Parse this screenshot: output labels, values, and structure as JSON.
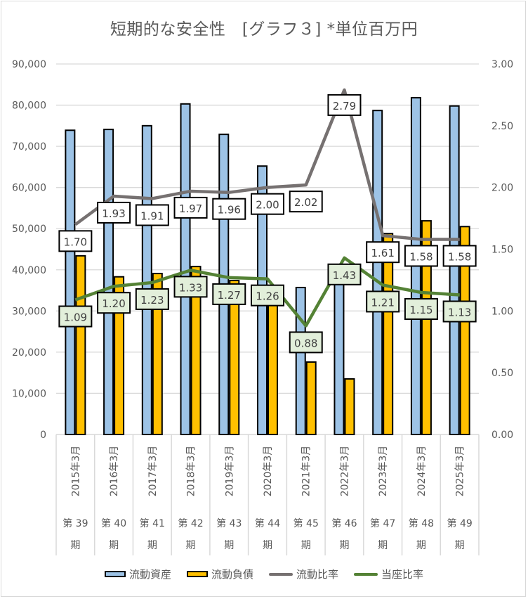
{
  "chart_data": {
    "type": "bar",
    "title": "短期的な安全性　[グラフ３] *単位百万円",
    "categories": [
      {
        "date": "2015年3月",
        "period": "第 39 期"
      },
      {
        "date": "2016年3月",
        "period": "第 40 期"
      },
      {
        "date": "2017年3月",
        "period": "第 41 期"
      },
      {
        "date": "2018年3月",
        "period": "第 42 期"
      },
      {
        "date": "2019年3月",
        "period": "第 43 期"
      },
      {
        "date": "2020年3月",
        "period": "第 44 期"
      },
      {
        "date": "2021年3月",
        "period": "第 45 期"
      },
      {
        "date": "2022年3月",
        "period": "第 46 期"
      },
      {
        "date": "2023年3月",
        "period": "第 47 期"
      },
      {
        "date": "2024年3月",
        "period": "第 48 期"
      },
      {
        "date": "2025年3月",
        "period": "第 49 期"
      }
    ],
    "series": [
      {
        "name": "流動資産",
        "type": "bar",
        "axis": "left",
        "color": "#9dc3e6",
        "values": [
          73900,
          74100,
          75000,
          80300,
          72900,
          65200,
          35700,
          37700,
          78700,
          81800,
          79800
        ]
      },
      {
        "name": "流動負債",
        "type": "bar",
        "axis": "left",
        "color": "#ffc000",
        "values": [
          43400,
          38300,
          39100,
          40800,
          37400,
          32600,
          17600,
          13500,
          48800,
          51900,
          50500
        ]
      },
      {
        "name": "流動比率",
        "type": "line",
        "axis": "right",
        "color": "#767171",
        "label_bg": "#ffffff",
        "values": [
          1.7,
          1.93,
          1.91,
          1.97,
          1.96,
          2.0,
          2.02,
          2.79,
          1.61,
          1.58,
          1.58
        ],
        "labels": [
          "1.70",
          "1.93",
          "1.91",
          "1.97",
          "1.96",
          "2.00",
          "2.02",
          "2.79",
          "1.61",
          "1.58",
          "1.58"
        ]
      },
      {
        "name": "当座比率",
        "type": "line",
        "axis": "right",
        "color": "#548235",
        "label_bg": "#e2efda",
        "values": [
          1.09,
          1.2,
          1.23,
          1.33,
          1.27,
          1.26,
          0.88,
          1.43,
          1.21,
          1.15,
          1.13
        ],
        "labels": [
          "1.09",
          "1.20",
          "1.23",
          "1.33",
          "1.27",
          "1.26",
          "0.88",
          "1.43",
          "1.21",
          "1.15",
          "1.13"
        ]
      }
    ],
    "y_left": {
      "min": 0,
      "max": 90000,
      "step": 10000,
      "ticks": [
        "0",
        "10,000",
        "20,000",
        "30,000",
        "40,000",
        "50,000",
        "60,000",
        "70,000",
        "80,000",
        "90,000"
      ]
    },
    "y_right": {
      "min": 0,
      "max": 3.0,
      "step": 0.5,
      "ticks": [
        "0.00",
        "0.50",
        "1.00",
        "1.50",
        "2.00",
        "2.50",
        "3.00"
      ]
    },
    "grid": true,
    "legend": "bottom",
    "xlabel": "",
    "ylabel": ""
  }
}
